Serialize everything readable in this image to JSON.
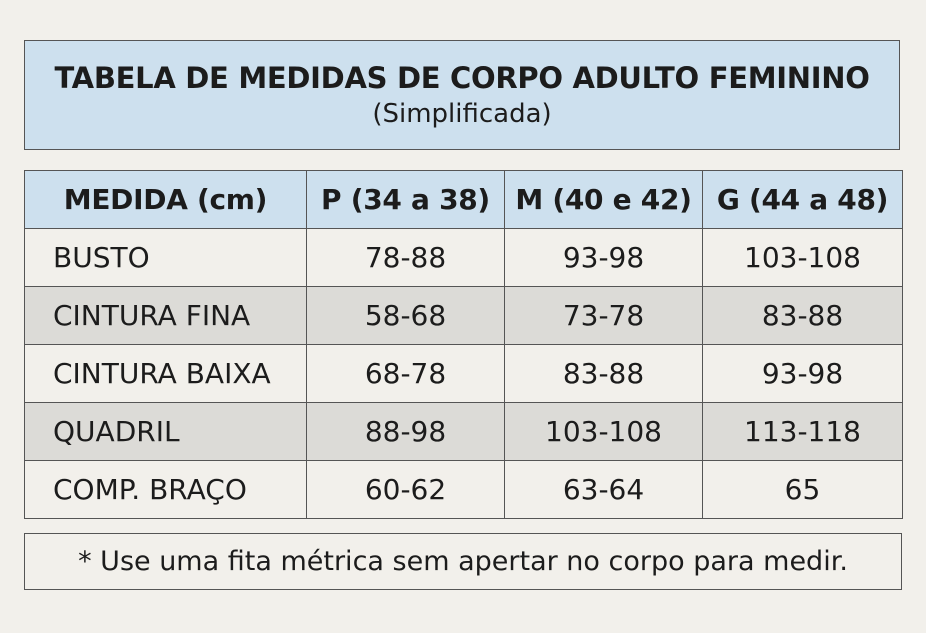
{
  "title": {
    "main": "TABELA DE MEDIDAS DE CORPO ADULTO FEMININO",
    "subtitle": "(Simplificada)"
  },
  "table": {
    "headers": [
      "MEDIDA (cm)",
      "P (34 a 38)",
      "M (40 e 42)",
      "G (44 a 48)"
    ],
    "rows": [
      [
        "BUSTO",
        "78-88",
        "93-98",
        "103-108"
      ],
      [
        "CINTURA FINA",
        "58-68",
        "73-78",
        "83-88"
      ],
      [
        "CINTURA BAIXA",
        "68-78",
        "83-88",
        "93-98"
      ],
      [
        "QUADRIL",
        "88-98",
        "103-108",
        "113-118"
      ],
      [
        "COMP. BRAÇO",
        "60-62",
        "63-64",
        "65"
      ]
    ]
  },
  "note": "* Use uma fita métrica sem apertar no corpo para medir.",
  "colors": {
    "header_bg": "#cde0ee",
    "page_bg": "#f2f0eb",
    "striped_row_bg": "#dcdbd7",
    "border": "#555555"
  }
}
